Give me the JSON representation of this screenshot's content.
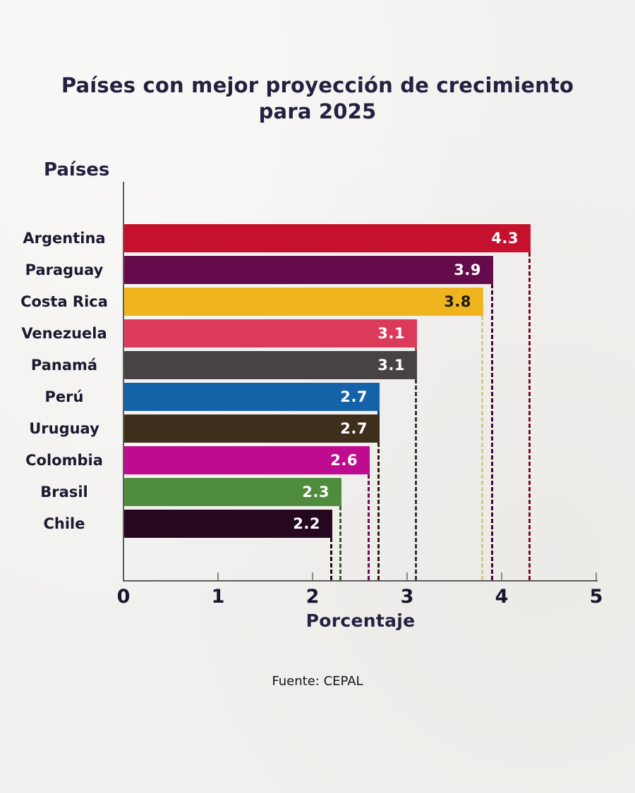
{
  "title": "Países con mejor proyección de crecimiento para 2025",
  "source": "Fuente: CEPAL",
  "colors": {
    "background": "#f2f1ef",
    "title_text": "#23213f",
    "axis_line": "#5c5c5c"
  },
  "chart_data": {
    "type": "bar",
    "orientation": "horizontal",
    "title": "Países con mejor proyección de crecimiento para 2025",
    "ylabel": "Países",
    "xlabel": "Porcentaje",
    "xlim": [
      0,
      5
    ],
    "x_ticks": [
      "0",
      "1",
      "2",
      "3",
      "4",
      "5"
    ],
    "grid": false,
    "legend": false,
    "categories": [
      "Argentina",
      "Paraguay",
      "Costa Rica",
      "Venezuela",
      "Panamá",
      "Perú",
      "Uruguay",
      "Colombia",
      "Brasil",
      "Chile"
    ],
    "values": [
      4.3,
      3.9,
      3.8,
      3.1,
      3.1,
      2.7,
      2.7,
      2.6,
      2.3,
      2.2
    ],
    "value_labels": [
      "4.3",
      "3.9",
      "3.8",
      "3.1",
      "3.1",
      "2.7",
      "2.7",
      "2.6",
      "2.3",
      "2.2"
    ],
    "bar_colors": [
      "#c6112e",
      "#650b4b",
      "#efb41e",
      "#db3a5b",
      "#474343",
      "#1463a8",
      "#3e2f1d",
      "#be0b90",
      "#4f8c3c",
      "#260720"
    ],
    "value_label_colors": [
      "#ffffff",
      "#ffffff",
      "#1a1a1a",
      "#ffffff",
      "#ffffff",
      "#ffffff",
      "#ffffff",
      "#ffffff",
      "#ffffff",
      "#ffffff"
    ],
    "dash_colors": [
      "#711221",
      "#420834",
      "#d3cc85",
      "#a8485c",
      "#383535",
      "#123f6e",
      "#2b2012",
      "#760a5d",
      "#34602a",
      "#1b0617"
    ],
    "source": "Fuente: CEPAL"
  }
}
